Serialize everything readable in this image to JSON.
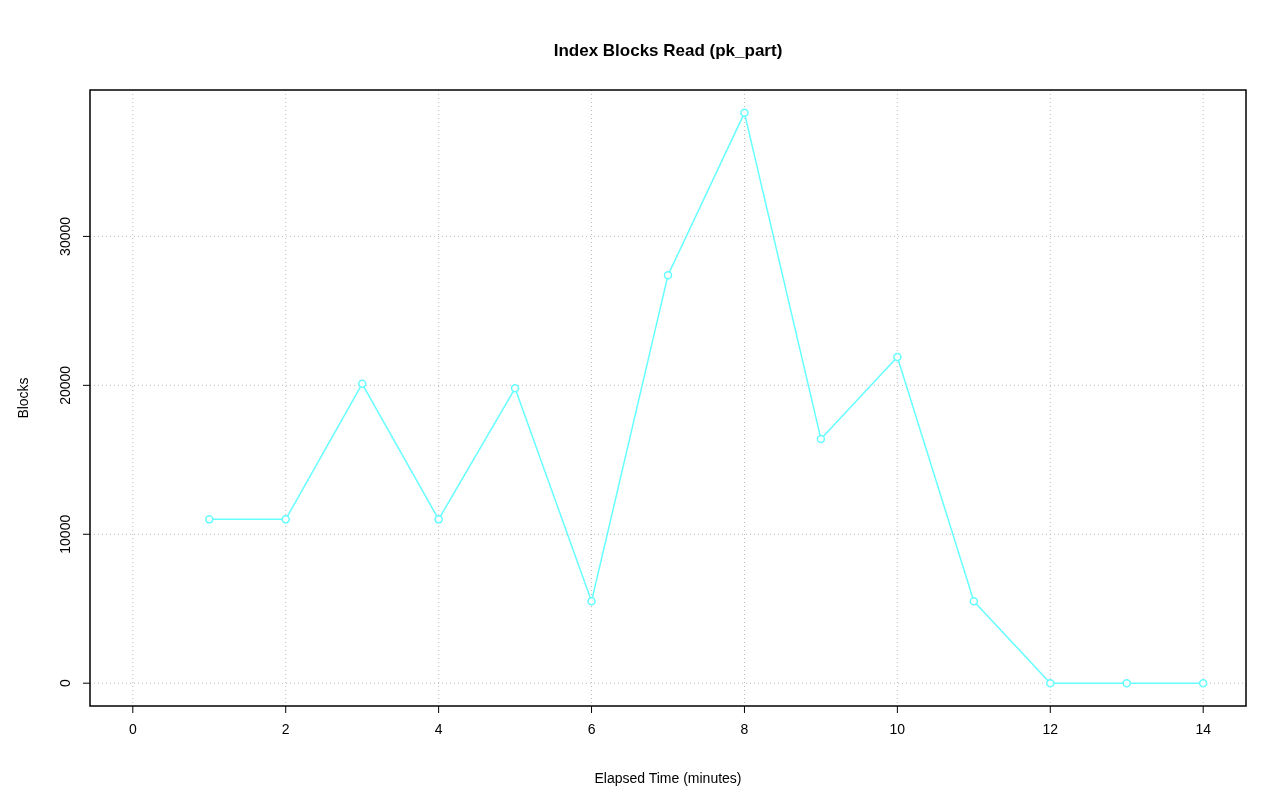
{
  "chart_data": {
    "type": "line",
    "title": "Index Blocks Read (pk_part)",
    "xlabel": "Elapsed Time (minutes)",
    "ylabel": "Blocks",
    "x": [
      1,
      2,
      3,
      4,
      5,
      6,
      7,
      8,
      9,
      10,
      11,
      12,
      13,
      14
    ],
    "series": [
      {
        "color": "#66ffff",
        "values": [
          11000,
          11000,
          20100,
          11000,
          19800,
          5500,
          27400,
          38300,
          16400,
          21900,
          5500,
          0,
          0,
          0
        ]
      }
    ],
    "xlim": [
      -0.56,
      14.56
    ],
    "xticks": [
      0,
      2,
      4,
      6,
      8,
      10,
      12,
      14
    ],
    "ylim": [
      -1532,
      39832
    ],
    "yticks": [
      0,
      10000,
      20000,
      30000
    ],
    "grid": true,
    "marker": "circle",
    "line_style": "solid"
  }
}
